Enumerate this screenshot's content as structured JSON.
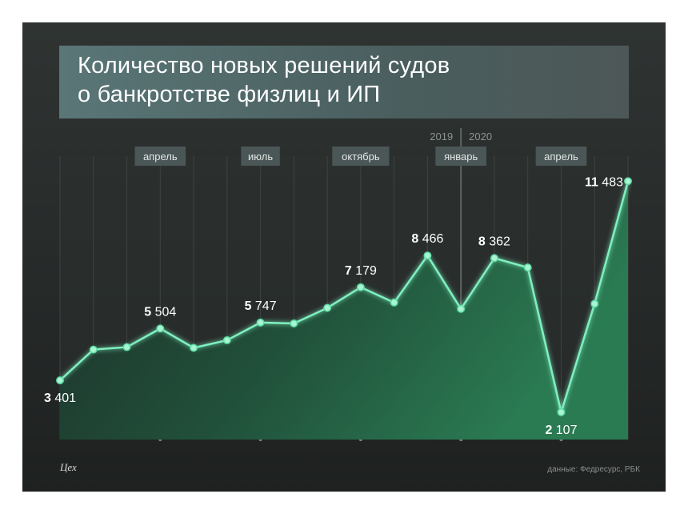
{
  "title_lines": [
    "Количество новых решений судов",
    "о банкротстве физлиц и ИП"
  ],
  "source": "данные: Федресурс, РБК",
  "logo": "Цех",
  "colors": {
    "accent": "#7ff0c0",
    "fill_top": "#2e6f4c",
    "fill_bottom": "#174a33"
  },
  "chart_data": {
    "type": "area",
    "title": "Количество новых решений судов о банкротстве физлиц и ИП",
    "xlabel": "",
    "ylabel": "",
    "ylim": [
      1000,
      12500
    ],
    "grid": true,
    "month_labels": [
      {
        "index": 3,
        "label": "апрель"
      },
      {
        "index": 6,
        "label": "июль"
      },
      {
        "index": 9,
        "label": "октябрь"
      },
      {
        "index": 12,
        "label": "январь"
      },
      {
        "index": 15,
        "label": "апрель"
      }
    ],
    "year_split": {
      "index": 12,
      "left": "2019",
      "right": "2020"
    },
    "values": [
      3401,
      4650,
      4750,
      5504,
      4720,
      5030,
      5747,
      5710,
      6340,
      7179,
      6560,
      8466,
      6300,
      8362,
      7980,
      2107,
      6510,
      11483
    ],
    "annotations": [
      {
        "index": 0,
        "bold": "3",
        "rest": "401",
        "pos": "below"
      },
      {
        "index": 3,
        "bold": "5",
        "rest": "504",
        "pos": "above"
      },
      {
        "index": 6,
        "bold": "5",
        "rest": "747",
        "pos": "above"
      },
      {
        "index": 9,
        "bold": "7",
        "rest": "179",
        "pos": "above"
      },
      {
        "index": 11,
        "bold": "8",
        "rest": "466",
        "pos": "above"
      },
      {
        "index": 13,
        "bold": "8",
        "rest": "362",
        "pos": "above"
      },
      {
        "index": 15,
        "bold": "2",
        "rest": "107",
        "pos": "below"
      },
      {
        "index": 17,
        "bold": "11",
        "rest": "483",
        "pos": "left"
      }
    ]
  }
}
